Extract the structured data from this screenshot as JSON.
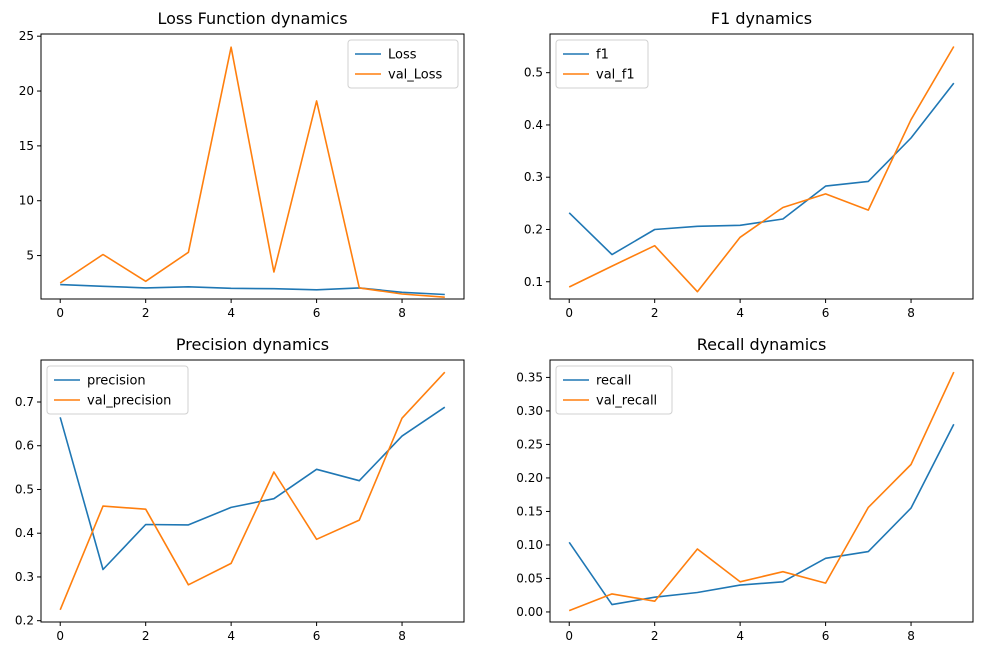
{
  "colors": {
    "series_a": "#1f77b4",
    "series_b": "#ff7f0e"
  },
  "chart_data": [
    {
      "type": "line",
      "title": "Loss Function dynamics",
      "x": [
        0,
        1,
        2,
        3,
        4,
        5,
        6,
        7,
        8,
        9
      ],
      "xticks": [
        "0",
        "2",
        "4",
        "6",
        "8"
      ],
      "xtick_values": [
        0,
        2,
        4,
        6,
        8
      ],
      "xlim": [
        -0.45,
        9.45
      ],
      "ylim": [
        1.04,
        25.2
      ],
      "yticks": [
        "5",
        "10",
        "15",
        "20",
        "25"
      ],
      "ytick_values": [
        5,
        10,
        15,
        20,
        25
      ],
      "legend": "top-right",
      "series": [
        {
          "name": "Loss",
          "color": "#1f77b4",
          "values": [
            2.35,
            2.2,
            2.05,
            2.15,
            2.02,
            1.98,
            1.88,
            2.05,
            1.65,
            1.45
          ]
        },
        {
          "name": "val_Loss",
          "color": "#ff7f0e",
          "values": [
            2.5,
            5.1,
            2.65,
            5.3,
            24.0,
            3.5,
            19.1,
            2.05,
            1.5,
            1.2
          ]
        }
      ]
    },
    {
      "type": "line",
      "title": "F1 dynamics",
      "x": [
        0,
        1,
        2,
        3,
        4,
        5,
        6,
        7,
        8,
        9
      ],
      "xticks": [
        "0",
        "2",
        "4",
        "6",
        "8"
      ],
      "xtick_values": [
        0,
        2,
        4,
        6,
        8
      ],
      "xlim": [
        -0.45,
        9.45
      ],
      "ylim": [
        0.067,
        0.574
      ],
      "yticks": [
        "0.1",
        "0.2",
        "0.3",
        "0.4",
        "0.5"
      ],
      "ytick_values": [
        0.1,
        0.2,
        0.3,
        0.4,
        0.5
      ],
      "legend": "top-left",
      "series": [
        {
          "name": "f1",
          "color": "#1f77b4",
          "values": [
            0.232,
            0.152,
            0.2,
            0.206,
            0.208,
            0.22,
            0.283,
            0.292,
            0.375,
            0.48
          ]
        },
        {
          "name": "val_f1",
          "color": "#ff7f0e",
          "values": [
            0.09,
            0.13,
            0.169,
            0.081,
            0.185,
            0.242,
            0.268,
            0.237,
            0.41,
            0.55
          ]
        }
      ]
    },
    {
      "type": "line",
      "title": "Precision dynamics",
      "x": [
        0,
        1,
        2,
        3,
        4,
        5,
        6,
        7,
        8,
        9
      ],
      "xticks": [
        "0",
        "2",
        "4",
        "6",
        "8"
      ],
      "xtick_values": [
        0,
        2,
        4,
        6,
        8
      ],
      "xlim": [
        -0.45,
        9.45
      ],
      "ylim": [
        0.197,
        0.796
      ],
      "yticks": [
        "0.2",
        "0.3",
        "0.4",
        "0.5",
        "0.6",
        "0.7"
      ],
      "ytick_values": [
        0.2,
        0.3,
        0.4,
        0.5,
        0.6,
        0.7
      ],
      "legend": "top-left",
      "series": [
        {
          "name": "precision",
          "color": "#1f77b4",
          "values": [
            0.665,
            0.317,
            0.42,
            0.419,
            0.459,
            0.479,
            0.546,
            0.52,
            0.622,
            0.688
          ]
        },
        {
          "name": "val_precision",
          "color": "#ff7f0e",
          "values": [
            0.225,
            0.462,
            0.455,
            0.282,
            0.331,
            0.54,
            0.386,
            0.43,
            0.663,
            0.768
          ]
        }
      ]
    },
    {
      "type": "line",
      "title": "Recall dynamics",
      "x": [
        0,
        1,
        2,
        3,
        4,
        5,
        6,
        7,
        8,
        9
      ],
      "xticks": [
        "0",
        "2",
        "4",
        "6",
        "8"
      ],
      "xtick_values": [
        0,
        2,
        4,
        6,
        8
      ],
      "xlim": [
        -0.45,
        9.45
      ],
      "ylim": [
        -0.015,
        0.376
      ],
      "yticks": [
        "0.00",
        "0.05",
        "0.10",
        "0.15",
        "0.20",
        "0.25",
        "0.30",
        "0.35"
      ],
      "ytick_values": [
        0,
        0.05,
        0.1,
        0.15,
        0.2,
        0.25,
        0.3,
        0.35
      ],
      "legend": "top-left",
      "series": [
        {
          "name": "recall",
          "color": "#1f77b4",
          "values": [
            0.104,
            0.011,
            0.022,
            0.029,
            0.04,
            0.045,
            0.08,
            0.09,
            0.155,
            0.28
          ]
        },
        {
          "name": "val_recall",
          "color": "#ff7f0e",
          "values": [
            0.002,
            0.027,
            0.016,
            0.094,
            0.045,
            0.06,
            0.043,
            0.156,
            0.22,
            0.358
          ]
        }
      ]
    }
  ]
}
